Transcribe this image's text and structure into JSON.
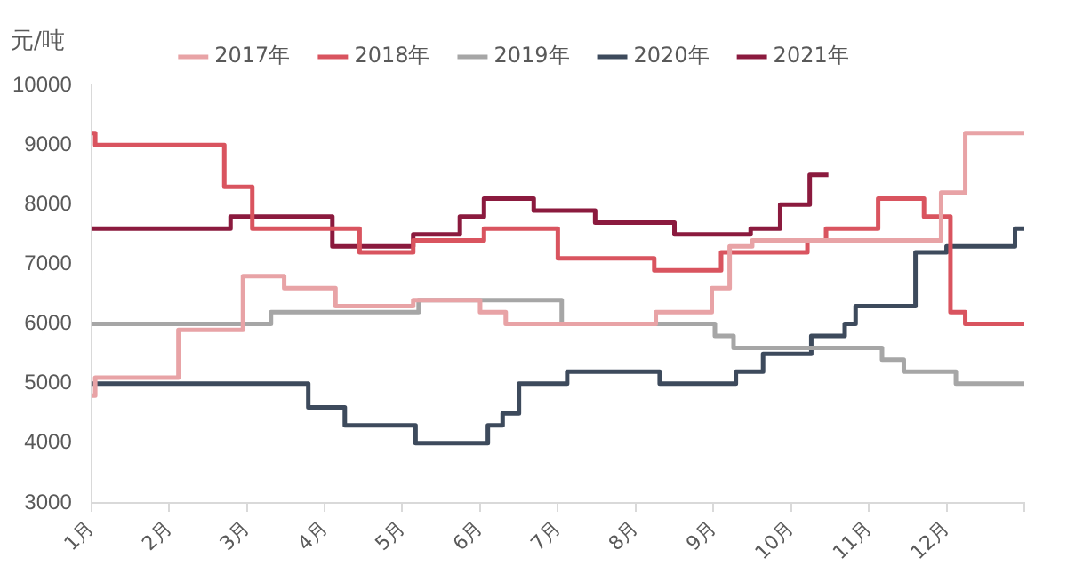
{
  "chart_data": {
    "type": "step",
    "ylabel": "元/吨",
    "legend": "top",
    "grid": false,
    "marker": "none",
    "line_style": "solid",
    "xlim": [
      1,
      13
    ],
    "xticks": [
      {
        "value": 1,
        "label": "1月"
      },
      {
        "value": 2,
        "label": "2月"
      },
      {
        "value": 3,
        "label": "3月"
      },
      {
        "value": 4,
        "label": "4月"
      },
      {
        "value": 5,
        "label": "5月"
      },
      {
        "value": 6,
        "label": "6月"
      },
      {
        "value": 7,
        "label": "7月"
      },
      {
        "value": 8,
        "label": "8月"
      },
      {
        "value": 9,
        "label": "9月"
      },
      {
        "value": 10,
        "label": "10月"
      },
      {
        "value": 11,
        "label": "11月"
      },
      {
        "value": 12,
        "label": "12月"
      },
      {
        "value": 13,
        "label": null
      }
    ],
    "ylim": [
      3000,
      10000
    ],
    "yticks": [
      3000,
      4000,
      5000,
      6000,
      7000,
      8000,
      9000,
      10000
    ],
    "series": [
      {
        "name": "2017年",
        "color": "#e8a3a6",
        "x": [
          1,
          1.05,
          2.12,
          2.95,
          3.48,
          4.14,
          5.14,
          6.0,
          6.33,
          8.26,
          8.98,
          9.21,
          9.5,
          11.93,
          12.24,
          13
        ],
        "values": [
          4800,
          5100,
          5900,
          6800,
          6600,
          6300,
          6400,
          6200,
          6000,
          6200,
          6600,
          7300,
          7400,
          8200,
          9200,
          9200
        ]
      },
      {
        "name": "2018年",
        "color": "#d9545f",
        "x": [
          1,
          1.05,
          2.71,
          3.07,
          4.45,
          5.14,
          6.05,
          7.0,
          8.24,
          9.1,
          10.21,
          10.45,
          11.12,
          11.71,
          12.05,
          12.24,
          13
        ],
        "values": [
          9200,
          9000,
          8300,
          7600,
          7200,
          7400,
          7600,
          7100,
          6900,
          7200,
          7400,
          7600,
          8100,
          7800,
          6200,
          6000,
          6000
        ]
      },
      {
        "name": "2019年",
        "color": "#a6a6a6",
        "x": [
          1,
          3.31,
          5.21,
          7.05,
          9.02,
          9.26,
          11.17,
          11.45,
          12.12,
          13
        ],
        "values": [
          6000,
          6200,
          6400,
          6000,
          5800,
          5600,
          5400,
          5200,
          5000,
          5000
        ]
      },
      {
        "name": "2020年",
        "color": "#3d4a5c",
        "x": [
          1,
          3.79,
          4.26,
          5.17,
          6.1,
          6.29,
          6.5,
          7.12,
          8.31,
          9.29,
          9.64,
          10.26,
          10.69,
          10.83,
          11.6,
          12.0,
          12.88,
          13
        ],
        "values": [
          5000,
          4600,
          4300,
          4000,
          4300,
          4500,
          5000,
          5200,
          5000,
          5200,
          5500,
          5800,
          6000,
          6300,
          7200,
          7300,
          7600,
          7600
        ]
      },
      {
        "name": "2021年",
        "color": "#8b1a3e",
        "x": [
          1,
          2.79,
          4.1,
          5.14,
          5.74,
          6.05,
          6.69,
          7.48,
          8.5,
          9.48,
          9.86,
          10.24,
          10.48
        ],
        "values": [
          7600,
          7800,
          7300,
          7500,
          7800,
          8100,
          7900,
          7700,
          7500,
          7600,
          8000,
          8500,
          8500
        ]
      }
    ]
  }
}
